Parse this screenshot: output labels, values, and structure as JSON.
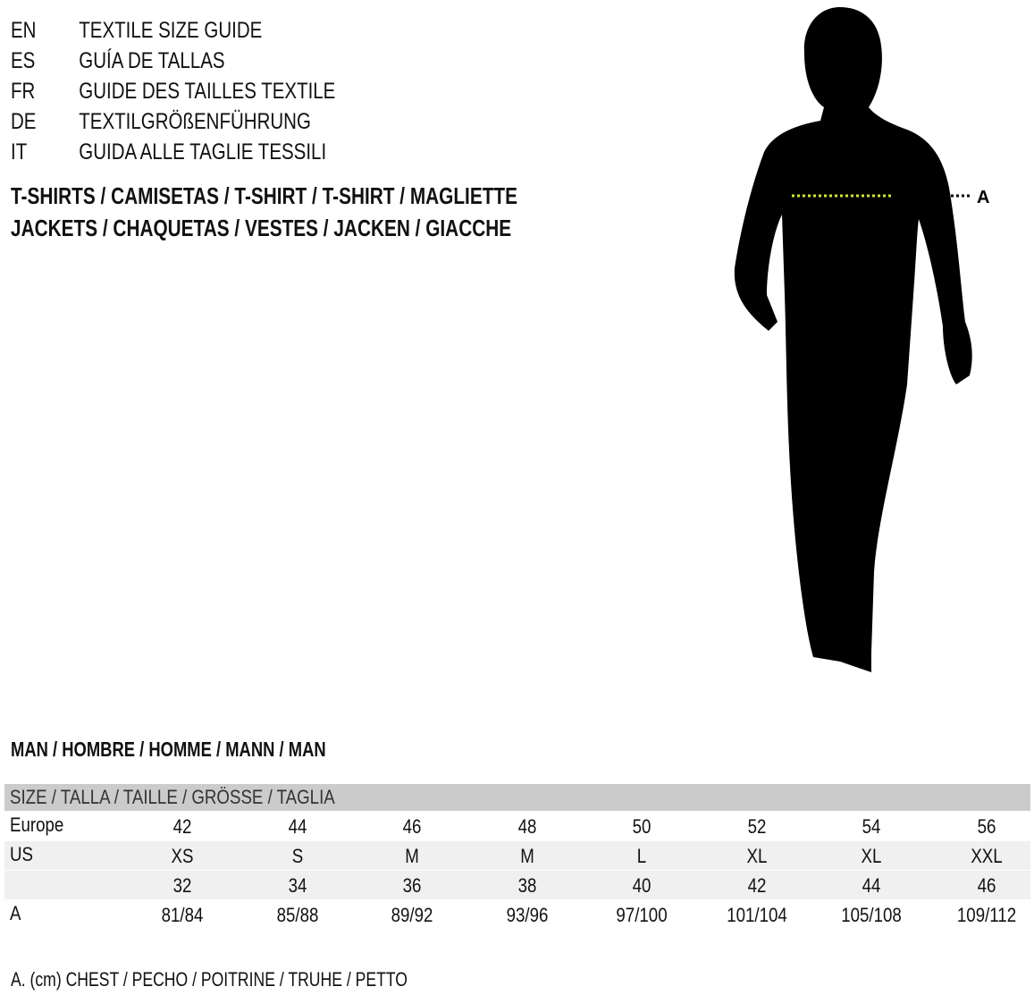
{
  "languages": [
    {
      "code": "EN",
      "text": "TEXTILE SIZE GUIDE"
    },
    {
      "code": "ES",
      "text": "GUÍA DE TALLAS"
    },
    {
      "code": "FR",
      "text": "GUIDE DES TAILLES TEXTILE"
    },
    {
      "code": "DE",
      "text": "TEXTILGRÖßENFÜHRUNG"
    },
    {
      "code": "IT",
      "text": "GUIDA ALLE TAGLIE TESSILI"
    }
  ],
  "categories": [
    "T-SHIRTS / CAMISETAS / T-SHIRT / T-SHIRT / MAGLIETTE",
    "JACKETS / CHAQUETAS / VESTES / JACKEN / GIACCHE"
  ],
  "figure": {
    "marker_label": "A",
    "marker_color": "#d4e81c"
  },
  "section": "MAN / HOMBRE / HOMME / MANN / MAN",
  "table": {
    "header": "SIZE / TALLA / TAILLE / GRÖSSE / TAGLIA",
    "rows": [
      {
        "label": "Europe",
        "values": [
          "42",
          "44",
          "46",
          "48",
          "50",
          "52",
          "54",
          "56"
        ]
      },
      {
        "label": "US",
        "values": [
          "XS",
          "S",
          "M",
          "M",
          "L",
          "XL",
          "XL",
          "XXL"
        ]
      },
      {
        "label": "",
        "values": [
          "32",
          "34",
          "36",
          "38",
          "40",
          "42",
          "44",
          "46"
        ]
      },
      {
        "label": "A",
        "values": [
          "81/84",
          "85/88",
          "89/92",
          "93/96",
          "97/100",
          "101/104",
          "105/108",
          "109/112"
        ]
      }
    ]
  },
  "footnote": "A. (cm) CHEST / PECHO / POITRINE / TRUHE / PETTO"
}
